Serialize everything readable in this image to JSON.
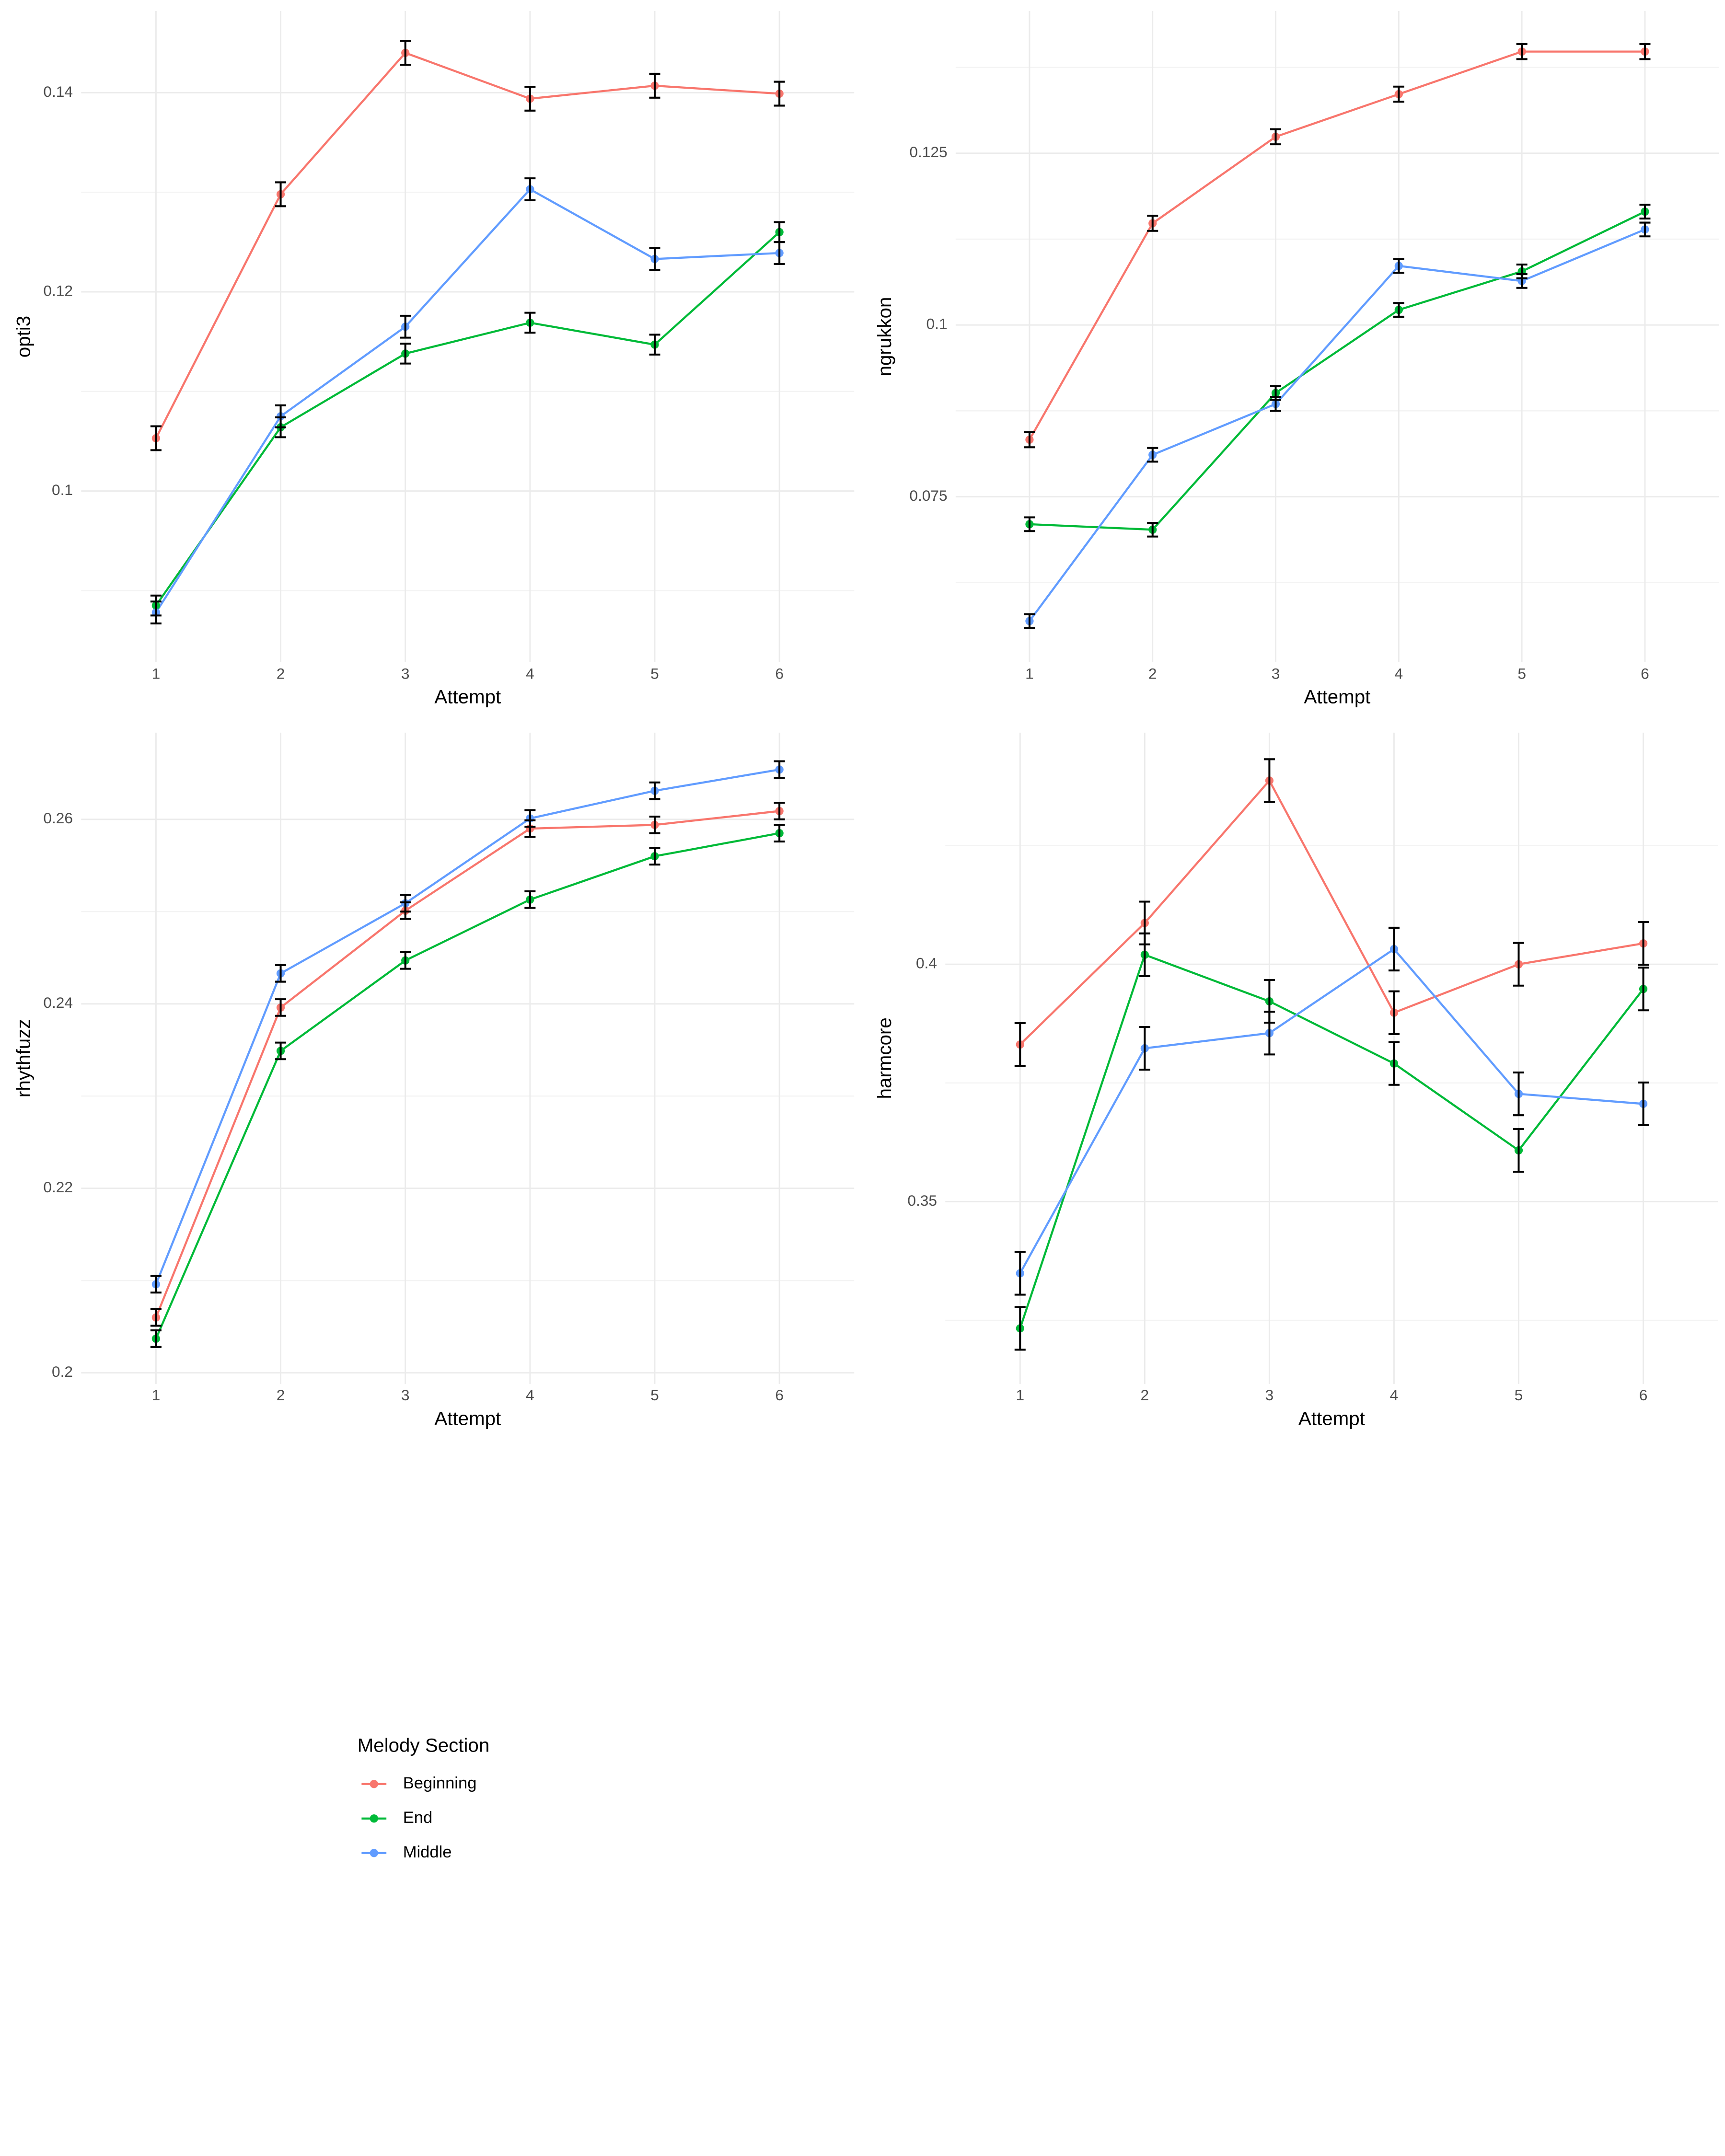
{
  "chart_data": [
    {
      "type": "line",
      "x_label": "Attempt",
      "y_label": "opti3",
      "x": [
        1,
        2,
        3,
        4,
        5,
        6
      ],
      "xlim": [
        0.4,
        6.6
      ],
      "xticks": [
        1,
        2,
        3,
        4,
        5,
        6
      ],
      "ylim": [
        0.0828,
        0.1482
      ],
      "yticks": [
        0.1,
        0.12,
        0.14
      ],
      "grid": true,
      "series": [
        {
          "name": "Beginning",
          "color": "#F8766D",
          "values": [
            0.1053,
            0.1298,
            0.144,
            0.1394,
            0.1407,
            0.1399
          ],
          "errors": [
            0.0012,
            0.0012,
            0.0012,
            0.0012,
            0.0012,
            0.0012
          ]
        },
        {
          "name": "End",
          "color": "#00BA38",
          "values": [
            0.0885,
            0.1064,
            0.1138,
            0.1169,
            0.1147,
            0.126
          ],
          "errors": [
            0.001,
            0.001,
            0.001,
            0.001,
            0.001,
            0.001
          ]
        },
        {
          "name": "Middle",
          "color": "#619CFF",
          "values": [
            0.0878,
            0.1075,
            0.1165,
            0.1303,
            0.1233,
            0.1239
          ],
          "errors": [
            0.0011,
            0.0011,
            0.0011,
            0.0011,
            0.0011,
            0.0011
          ]
        }
      ]
    },
    {
      "type": "line",
      "x_label": "Attempt",
      "y_label": "ngrukkon",
      "x": [
        1,
        2,
        3,
        4,
        5,
        6
      ],
      "xlim": [
        0.4,
        6.6
      ],
      "xticks": [
        1,
        2,
        3,
        4,
        5,
        6
      ],
      "ylim": [
        0.0509,
        0.1457
      ],
      "yticks": [
        0.075,
        0.1,
        0.125
      ],
      "grid": true,
      "series": [
        {
          "name": "Beginning",
          "color": "#F8766D",
          "values": [
            0.0833,
            0.1148,
            0.1274,
            0.1336,
            0.1398,
            0.1398
          ],
          "errors": [
            0.0011,
            0.0011,
            0.0011,
            0.0011,
            0.0011,
            0.0011
          ]
        },
        {
          "name": "End",
          "color": "#00BA38",
          "values": [
            0.071,
            0.0702,
            0.0901,
            0.1022,
            0.1078,
            0.1165
          ],
          "errors": [
            0.001,
            0.001,
            0.001,
            0.001,
            0.001,
            0.001
          ]
        },
        {
          "name": "Middle",
          "color": "#619CFF",
          "values": [
            0.0569,
            0.0811,
            0.0885,
            0.1086,
            0.1064,
            0.1139
          ],
          "errors": [
            0.001,
            0.001,
            0.001,
            0.001,
            0.001,
            0.001
          ]
        }
      ]
    },
    {
      "type": "line",
      "x_label": "Attempt",
      "y_label": "rhythfuzz",
      "x": [
        1,
        2,
        3,
        4,
        5,
        6
      ],
      "xlim": [
        0.4,
        6.6
      ],
      "xticks": [
        1,
        2,
        3,
        4,
        5,
        6
      ],
      "ylim": [
        0.1988,
        0.2694
      ],
      "yticks": [
        0.2,
        0.22,
        0.24,
        0.26
      ],
      "grid": true,
      "series": [
        {
          "name": "Beginning",
          "color": "#F8766D",
          "values": [
            0.206,
            0.2396,
            0.2501,
            0.259,
            0.2594,
            0.2609
          ],
          "errors": [
            0.0009,
            0.0009,
            0.0009,
            0.0009,
            0.0009,
            0.0009
          ]
        },
        {
          "name": "End",
          "color": "#00BA38",
          "values": [
            0.2037,
            0.2349,
            0.2447,
            0.2513,
            0.256,
            0.2585
          ],
          "errors": [
            0.0009,
            0.0009,
            0.0009,
            0.0009,
            0.0009,
            0.0009
          ]
        },
        {
          "name": "Middle",
          "color": "#619CFF",
          "values": [
            0.2096,
            0.2433,
            0.2509,
            0.2601,
            0.2631,
            0.2654
          ],
          "errors": [
            0.0009,
            0.0009,
            0.0009,
            0.0009,
            0.0009,
            0.0009
          ]
        }
      ]
    },
    {
      "type": "line",
      "x_label": "Attempt",
      "y_label": "harmcore",
      "x": [
        1,
        2,
        3,
        4,
        5,
        6
      ],
      "xlim": [
        0.4,
        6.6
      ],
      "xticks": [
        1,
        2,
        3,
        4,
        5,
        6
      ],
      "ylim": [
        0.3116,
        0.4488
      ],
      "yticks": [
        0.35,
        0.4
      ],
      "grid": true,
      "series": [
        {
          "name": "Beginning",
          "color": "#F8766D",
          "values": [
            0.3831,
            0.4087,
            0.4387,
            0.3898,
            0.4,
            0.4044
          ],
          "errors": [
            0.0045,
            0.0045,
            0.0045,
            0.0045,
            0.0045,
            0.0045
          ]
        },
        {
          "name": "End",
          "color": "#00BA38",
          "values": [
            0.3233,
            0.402,
            0.3922,
            0.3791,
            0.3608,
            0.3948
          ],
          "errors": [
            0.0045,
            0.0045,
            0.0045,
            0.0045,
            0.0045,
            0.0045
          ]
        },
        {
          "name": "Middle",
          "color": "#619CFF",
          "values": [
            0.3349,
            0.3823,
            0.3855,
            0.4032,
            0.3727,
            0.3706
          ],
          "errors": [
            0.0045,
            0.0045,
            0.0045,
            0.0045,
            0.0045,
            0.0045
          ]
        }
      ]
    }
  ],
  "legend": {
    "title": "Melody Section"
  }
}
